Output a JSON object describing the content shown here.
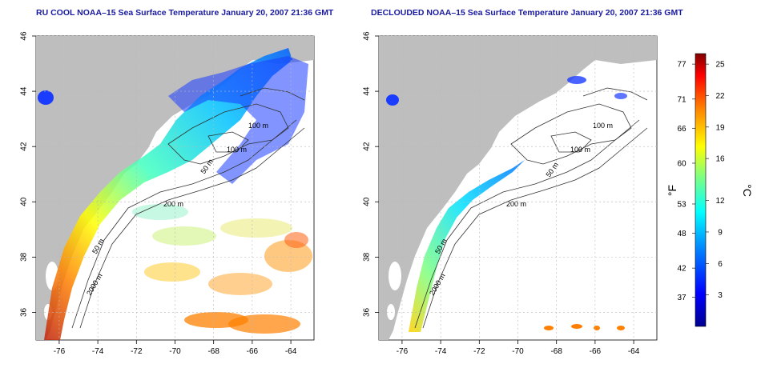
{
  "left_panel": {
    "title": "RU COOL NOAA–15 Sea Surface Temperature January 20, 2007 21:36 GMT"
  },
  "right_panel": {
    "title": "DECLOUDED NOAA–15 Sea Surface Temperature January 20, 2007 21:36 GMT"
  },
  "map_axes": {
    "x_ticks": [
      "-76",
      "-74",
      "-72",
      "-70",
      "-68",
      "-66",
      "-64"
    ],
    "y_ticks": [
      "36",
      "38",
      "40",
      "42",
      "44",
      "46"
    ],
    "x_range": [
      -77.2,
      -62.8
    ],
    "y_range": [
      35,
      46
    ]
  },
  "contours": {
    "labels_left": [
      "100 m",
      "100 m",
      "50 m",
      "200 m",
      "50 m",
      "2000 m"
    ],
    "labels_right": [
      "100 m",
      "100 m",
      "50 m",
      "200 m",
      "50 m",
      "2000 m"
    ]
  },
  "colorbar": {
    "fahrenheit_label": "°F",
    "celsius_label": "°C",
    "fahrenheit_ticks": [
      "77",
      "71",
      "66",
      "60",
      "53",
      "48",
      "42",
      "37"
    ],
    "celsius_ticks": [
      "25",
      "22",
      "19",
      "16",
      "12",
      "9",
      "6",
      "3"
    ],
    "range_celsius": [
      0,
      26
    ],
    "colors": [
      "#00008f",
      "#0000ff",
      "#0080ff",
      "#00ffff",
      "#80ff80",
      "#ffff00",
      "#ff8000",
      "#ff0000",
      "#800000"
    ]
  },
  "colors": {
    "land": "#bebebe",
    "title": "#1a1aa0",
    "grid": "#b8b8b8"
  }
}
